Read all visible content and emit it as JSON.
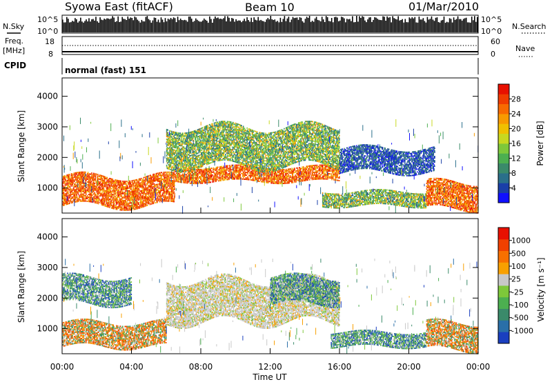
{
  "header": {
    "station": "Syowa East (fitACF)",
    "beam": "Beam 10",
    "date": "01/Mar/2010"
  },
  "status_panel": {
    "nsky_label": "N.Sky",
    "nsky_ticks": [
      "10^5",
      "10^0"
    ],
    "nsearch_label": "N.Search",
    "nsearch_ticks": [
      "10^5",
      "10^0"
    ],
    "freq_label": "Freq.",
    "freq_unit": "[MHz]",
    "freq_ticks": [
      "18",
      "8"
    ],
    "nave_label": "Nave",
    "nave_ticks": [
      "60",
      "0"
    ],
    "cpid_label": "CPID",
    "cpid_value": "normal (fast) 151"
  },
  "chart_data": [
    {
      "type": "heatmap",
      "name": "power",
      "ylabel": "Slant Range [km]",
      "xlabel": "Time UT",
      "ylim": [
        180,
        4600
      ],
      "xlim": [
        0,
        24
      ],
      "y_ticks": [
        "1000",
        "2000",
        "3000",
        "4000"
      ],
      "x_ticks": [
        "00:00",
        "04:00",
        "08:00",
        "12:00",
        "16:00",
        "20:00",
        "00:00"
      ],
      "colorbar": {
        "label": "Power [dB]",
        "ticks": [
          "4",
          "8",
          "12",
          "16",
          "20",
          "24",
          "28"
        ],
        "colors": [
          "#1010ff",
          "#1a3fa8",
          "#2a6f8a",
          "#3a8a6a",
          "#4caf50",
          "#7ec83a",
          "#c8d820",
          "#f0c000",
          "#f89a00",
          "#f86a00",
          "#f03c00",
          "#e81000"
        ]
      },
      "regions": [
        {
          "t0": 0.0,
          "t1": 6.5,
          "r0": 400,
          "r1": 1400,
          "value": "high"
        },
        {
          "t0": 6.5,
          "t1": 16.0,
          "r0": 1200,
          "r1": 1700,
          "value": "high"
        },
        {
          "t0": 6.0,
          "t1": 16.0,
          "r0": 1700,
          "r1": 3000,
          "value": "medium"
        },
        {
          "t0": 15.0,
          "t1": 21.0,
          "r0": 400,
          "r1": 900,
          "value": "medium"
        },
        {
          "t0": 16.0,
          "t1": 21.5,
          "r0": 1500,
          "r1": 2300,
          "value": "low"
        },
        {
          "t0": 21.0,
          "t1": 24.0,
          "r0": 300,
          "r1": 1200,
          "value": "high"
        }
      ]
    },
    {
      "type": "heatmap",
      "name": "velocity",
      "ylabel": "Slant Range [km]",
      "xlabel": "Time UT",
      "ylim": [
        180,
        4600
      ],
      "xlim": [
        0,
        24
      ],
      "y_ticks": [
        "1000",
        "2000",
        "3000",
        "4000"
      ],
      "x_ticks": [
        "00:00",
        "04:00",
        "08:00",
        "12:00",
        "16:00",
        "20:00",
        "00:00"
      ],
      "colorbar": {
        "label": "Velocity [m s⁻¹]",
        "ticks": [
          "1000",
          "500",
          "100",
          "25",
          "-25",
          "-100",
          "-500",
          "-1000"
        ],
        "colors": [
          "#1a3fbf",
          "#2a6fa8",
          "#3a8a6a",
          "#4caf50",
          "#7ec83a",
          "#c8c8c8",
          "#f8a000",
          "#f87000",
          "#f04000",
          "#e81000"
        ]
      },
      "regions": [
        {
          "t0": 0.0,
          "t1": 6.0,
          "r0": 400,
          "r1": 1200,
          "value": "away"
        },
        {
          "t0": 0.0,
          "t1": 4.0,
          "r0": 1800,
          "r1": 2700,
          "value": "toward"
        },
        {
          "t0": 6.0,
          "t1": 16.0,
          "r0": 1200,
          "r1": 2600,
          "value": "ground"
        },
        {
          "t0": 12.0,
          "t1": 16.0,
          "r0": 1800,
          "r1": 2700,
          "value": "toward"
        },
        {
          "t0": 15.5,
          "t1": 21.0,
          "r0": 400,
          "r1": 900,
          "value": "toward"
        },
        {
          "t0": 21.0,
          "t1": 24.0,
          "r0": 300,
          "r1": 1200,
          "value": "away"
        }
      ]
    }
  ]
}
